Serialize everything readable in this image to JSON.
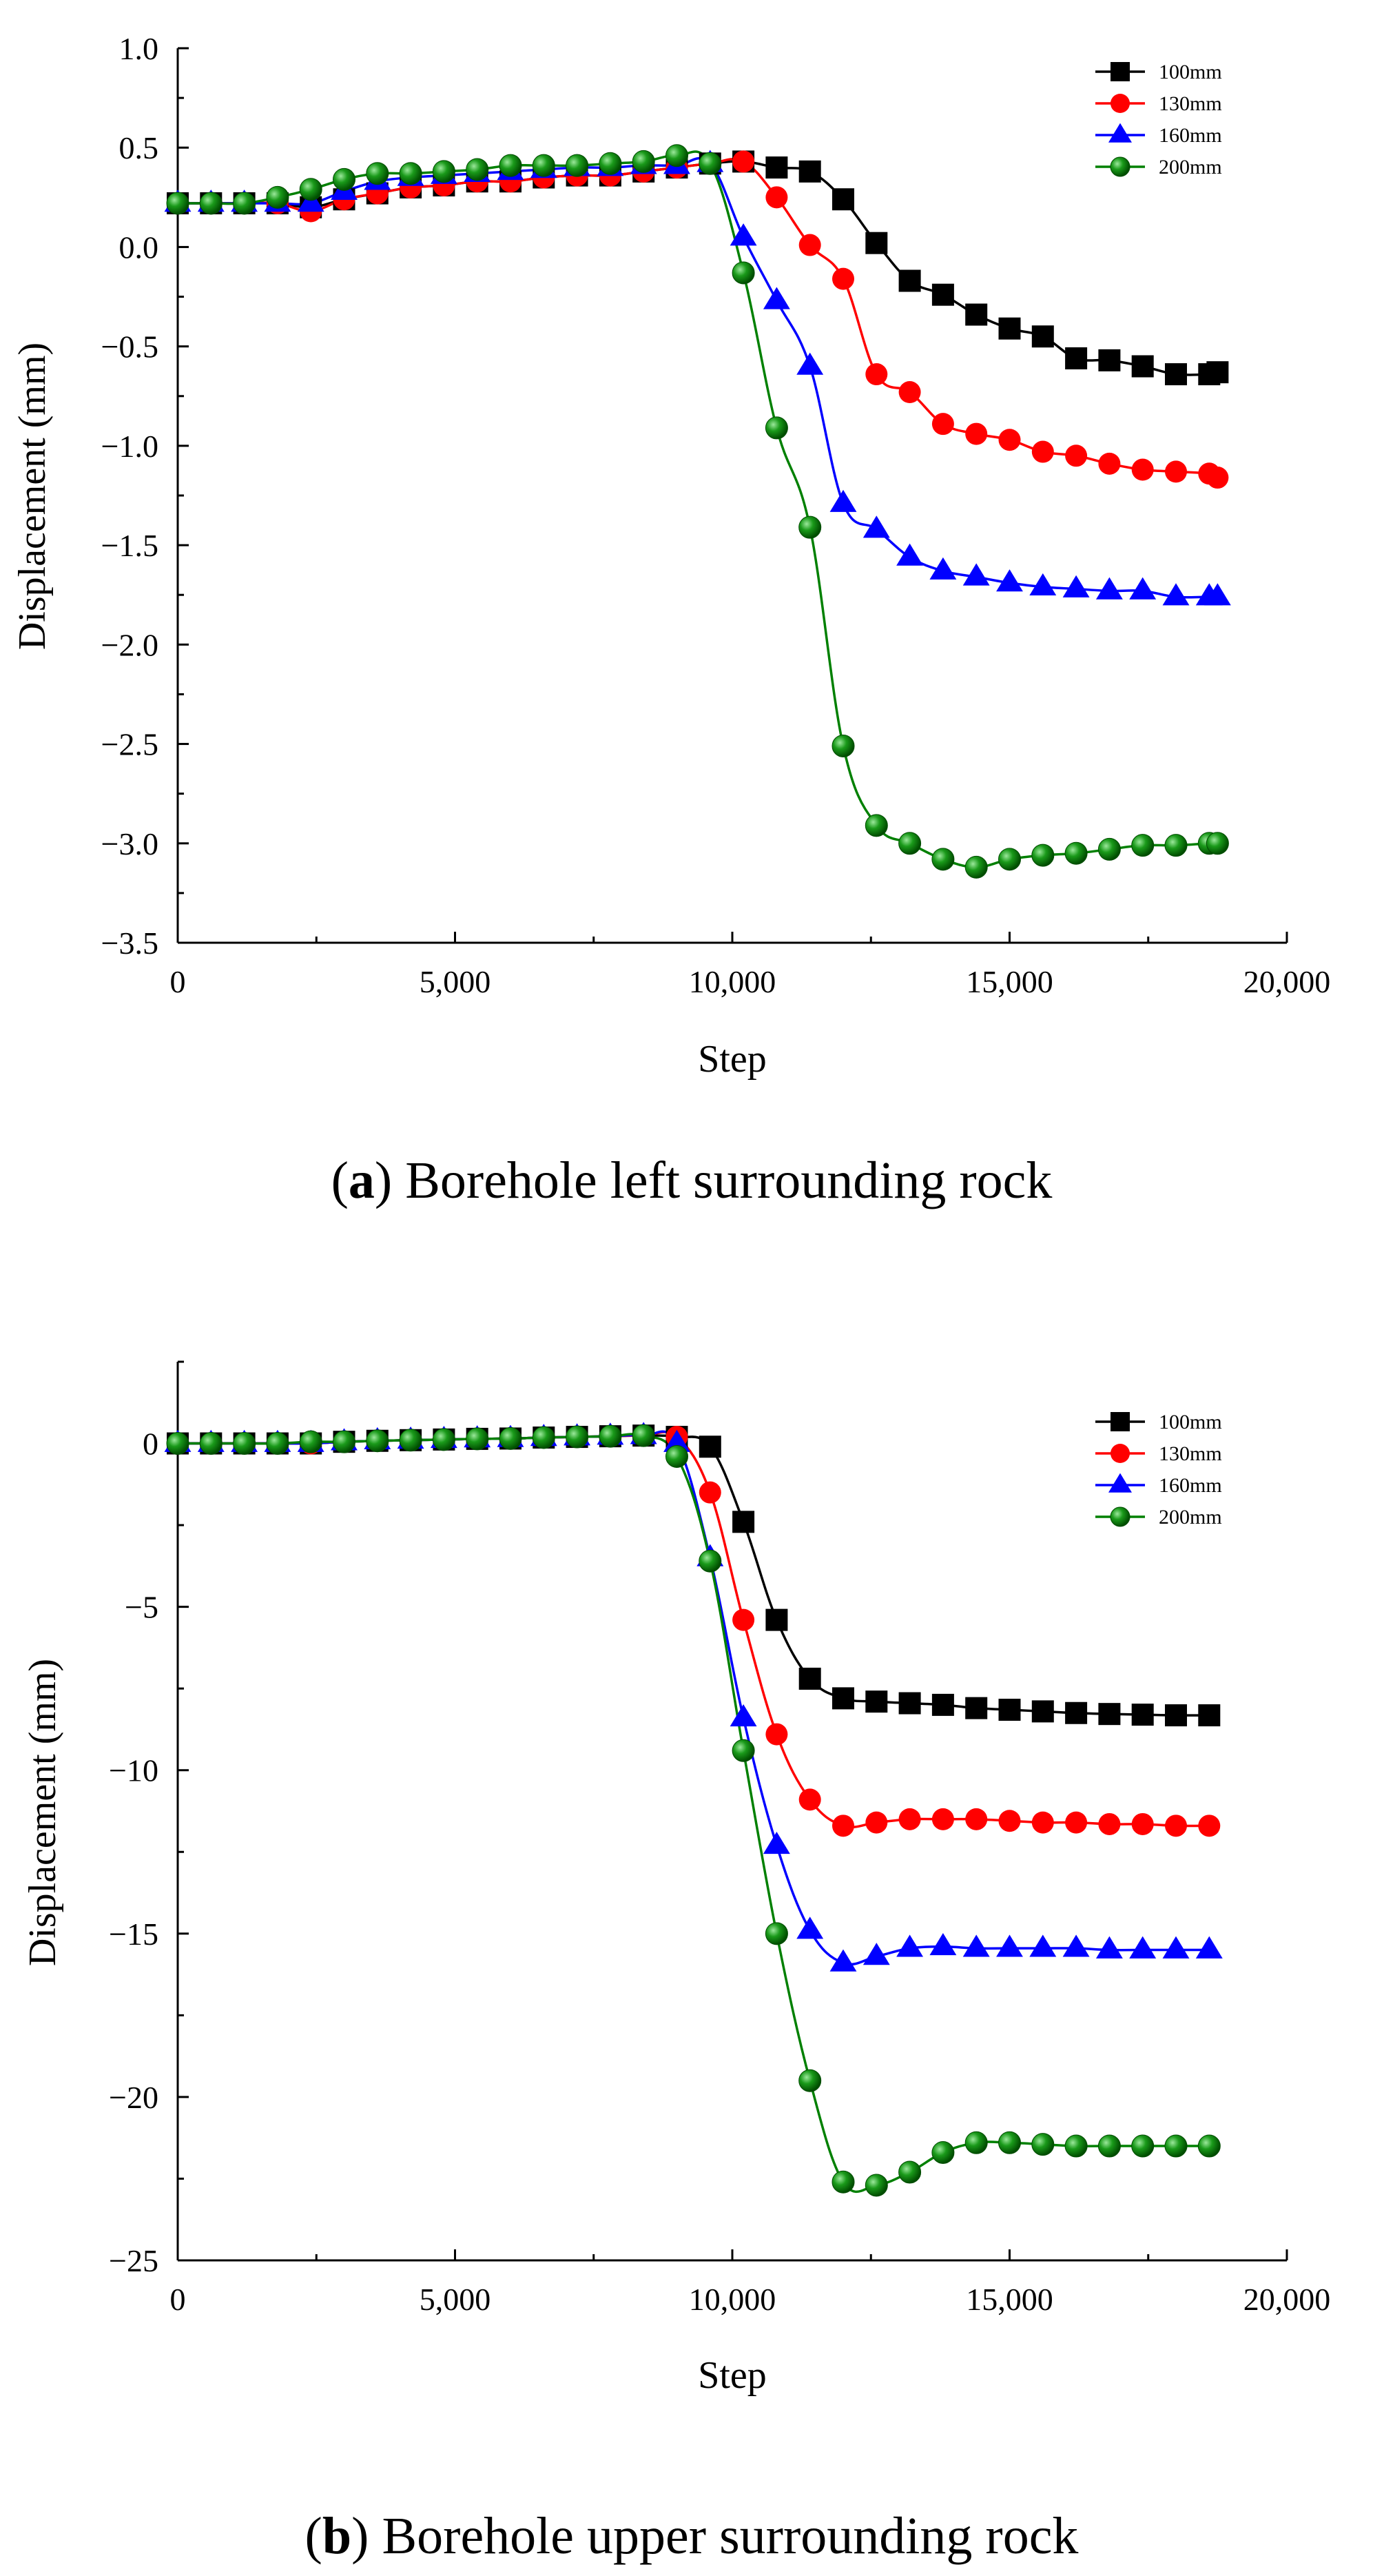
{
  "chart_data": [
    {
      "type": "line",
      "panel_label": "a",
      "caption_text": "Borehole left surrounding rock",
      "xlabel": "Step",
      "ylabel": "Displacement (mm)",
      "xlim": [
        0,
        20000
      ],
      "ylim": [
        -3.5,
        1.0
      ],
      "x_ticks": [
        0,
        5000,
        10000,
        15000,
        20000
      ],
      "x_tick_labels": [
        "0",
        "5,000",
        "10,000",
        "15,000",
        "20,000"
      ],
      "y_ticks": [
        -3.5,
        -3.0,
        -2.5,
        -2.0,
        -1.5,
        -1.0,
        -0.5,
        0.0,
        0.5,
        1.0
      ],
      "y_tick_labels": [
        "−3.5",
        "−3.0",
        "−2.5",
        "−2.0",
        "−1.5",
        "−1.0",
        "−0.5",
        "0.0",
        "0.5",
        "1.0"
      ],
      "legend_position": "top-right",
      "series": [
        {
          "name": "100mm",
          "color": "#000000",
          "marker": "square",
          "x": [
            0,
            600,
            1200,
            1800,
            2400,
            3000,
            3600,
            4200,
            4800,
            5400,
            6000,
            6600,
            7200,
            7800,
            8400,
            9000,
            9600,
            10200,
            10800,
            11400,
            12000,
            12600,
            13200,
            13800,
            14400,
            15000,
            15600,
            16200,
            16800,
            17400,
            18000,
            18600,
            18750
          ],
          "values": [
            0.22,
            0.22,
            0.22,
            0.22,
            0.2,
            0.24,
            0.27,
            0.3,
            0.31,
            0.33,
            0.33,
            0.35,
            0.36,
            0.36,
            0.38,
            0.4,
            0.42,
            0.43,
            0.4,
            0.38,
            0.24,
            0.02,
            -0.17,
            -0.24,
            -0.34,
            -0.41,
            -0.45,
            -0.56,
            -0.57,
            -0.6,
            -0.64,
            -0.64,
            -0.63
          ]
        },
        {
          "name": "130mm",
          "color": "#ff0000",
          "marker": "circle",
          "x": [
            0,
            600,
            1200,
            1800,
            2400,
            3000,
            3600,
            4200,
            4800,
            5400,
            6000,
            6600,
            7200,
            7800,
            8400,
            9000,
            9600,
            10200,
            10800,
            11400,
            12000,
            12600,
            13200,
            13800,
            14400,
            15000,
            15600,
            16200,
            16800,
            17400,
            18000,
            18600,
            18750
          ],
          "values": [
            0.22,
            0.22,
            0.22,
            0.22,
            0.18,
            0.24,
            0.27,
            0.3,
            0.31,
            0.33,
            0.33,
            0.35,
            0.36,
            0.36,
            0.38,
            0.4,
            0.42,
            0.43,
            0.25,
            0.01,
            -0.16,
            -0.64,
            -0.73,
            -0.89,
            -0.94,
            -0.97,
            -1.03,
            -1.05,
            -1.09,
            -1.12,
            -1.13,
            -1.14,
            -1.16
          ]
        },
        {
          "name": "160mm",
          "color": "#0000ff",
          "marker": "triangle",
          "x": [
            0,
            600,
            1200,
            1800,
            2400,
            3000,
            3600,
            4200,
            4800,
            5400,
            6000,
            6600,
            7200,
            7800,
            8400,
            9000,
            9600,
            10200,
            10800,
            11400,
            12000,
            12600,
            13200,
            13800,
            14400,
            15000,
            15600,
            16200,
            16800,
            17400,
            18000,
            18600,
            18750
          ],
          "values": [
            0.22,
            0.22,
            0.22,
            0.22,
            0.22,
            0.28,
            0.33,
            0.35,
            0.36,
            0.37,
            0.38,
            0.39,
            0.4,
            0.4,
            0.41,
            0.41,
            0.42,
            0.05,
            -0.27,
            -0.6,
            -1.29,
            -1.42,
            -1.56,
            -1.63,
            -1.66,
            -1.69,
            -1.71,
            -1.72,
            -1.73,
            -1.73,
            -1.76,
            -1.76,
            -1.76
          ]
        },
        {
          "name": "200mm",
          "color": "#008000",
          "marker": "sphere",
          "x": [
            0,
            600,
            1200,
            1800,
            2400,
            3000,
            3600,
            4200,
            4800,
            5400,
            6000,
            6600,
            7200,
            7800,
            8400,
            9000,
            9600,
            10200,
            10800,
            11400,
            12000,
            12600,
            13200,
            13800,
            14400,
            15000,
            15600,
            16200,
            16800,
            17400,
            18000,
            18600,
            18750
          ],
          "values": [
            0.22,
            0.22,
            0.22,
            0.25,
            0.29,
            0.34,
            0.37,
            0.37,
            0.38,
            0.39,
            0.41,
            0.41,
            0.41,
            0.42,
            0.43,
            0.46,
            0.42,
            -0.13,
            -0.91,
            -1.41,
            -2.51,
            -2.91,
            -3.0,
            -3.08,
            -3.12,
            -3.08,
            -3.06,
            -3.05,
            -3.03,
            -3.01,
            -3.01,
            -3.0,
            -3.0
          ]
        }
      ]
    },
    {
      "type": "line",
      "panel_label": "b",
      "caption_text": "Borehole upper surrounding rock",
      "xlabel": "Step",
      "ylabel": "Displacement (mm)",
      "xlim": [
        0,
        20000
      ],
      "ylim": [
        -25,
        2.5
      ],
      "x_ticks": [
        0,
        5000,
        10000,
        15000,
        20000
      ],
      "x_tick_labels": [
        "0",
        "5,000",
        "10,000",
        "15,000",
        "20,000"
      ],
      "y_ticks": [
        -25,
        -20,
        -15,
        -10,
        -5,
        0
      ],
      "y_tick_labels": [
        "−25",
        "−20",
        "−15",
        "−10",
        "−5",
        "0"
      ],
      "legend_position": "top-right",
      "series": [
        {
          "name": "100mm",
          "color": "#000000",
          "marker": "square",
          "x": [
            0,
            600,
            1200,
            1800,
            2400,
            3000,
            3600,
            4200,
            4800,
            5400,
            6000,
            6600,
            7200,
            7800,
            8400,
            9000,
            9600,
            10200,
            10800,
            11400,
            12000,
            12600,
            13200,
            13800,
            14400,
            15000,
            15600,
            16200,
            16800,
            17400,
            18000,
            18600
          ],
          "values": [
            0.0,
            0.0,
            0.0,
            0.0,
            0.0,
            0.05,
            0.08,
            0.1,
            0.12,
            0.14,
            0.15,
            0.18,
            0.2,
            0.22,
            0.24,
            0.2,
            -0.1,
            -2.4,
            -5.4,
            -7.2,
            -7.8,
            -7.9,
            -7.95,
            -8.0,
            -8.1,
            -8.15,
            -8.2,
            -8.25,
            -8.28,
            -8.3,
            -8.32,
            -8.32
          ]
        },
        {
          "name": "130mm",
          "color": "#ff0000",
          "marker": "circle",
          "x": [
            0,
            600,
            1200,
            1800,
            2400,
            3000,
            3600,
            4200,
            4800,
            5400,
            6000,
            6600,
            7200,
            7800,
            8400,
            9000,
            9600,
            10200,
            10800,
            11400,
            12000,
            12600,
            13200,
            13800,
            14400,
            15000,
            15600,
            16200,
            16800,
            17400,
            18000,
            18600
          ],
          "values": [
            0.0,
            0.0,
            0.0,
            0.0,
            0.0,
            0.05,
            0.08,
            0.1,
            0.12,
            0.14,
            0.15,
            0.18,
            0.2,
            0.22,
            0.24,
            0.2,
            -1.5,
            -5.4,
            -8.9,
            -10.9,
            -11.7,
            -11.6,
            -11.5,
            -11.5,
            -11.5,
            -11.55,
            -11.6,
            -11.6,
            -11.65,
            -11.65,
            -11.7,
            -11.7
          ]
        },
        {
          "name": "160mm",
          "color": "#0000ff",
          "marker": "triangle",
          "x": [
            0,
            600,
            1200,
            1800,
            2400,
            3000,
            3600,
            4200,
            4800,
            5400,
            6000,
            6600,
            7200,
            7800,
            8400,
            9000,
            9600,
            10200,
            10800,
            11400,
            12000,
            12600,
            13200,
            13800,
            14400,
            15000,
            15600,
            16200,
            16800,
            17400,
            18000,
            18600
          ],
          "values": [
            0.0,
            0.0,
            0.0,
            0.0,
            0.0,
            0.05,
            0.08,
            0.1,
            0.12,
            0.14,
            0.15,
            0.18,
            0.2,
            0.22,
            0.24,
            0.0,
            -3.5,
            -8.4,
            -12.3,
            -14.9,
            -15.9,
            -15.7,
            -15.45,
            -15.4,
            -15.45,
            -15.45,
            -15.45,
            -15.45,
            -15.5,
            -15.5,
            -15.5,
            -15.5
          ]
        },
        {
          "name": "200mm",
          "color": "#008000",
          "marker": "sphere",
          "x": [
            0,
            600,
            1200,
            1800,
            2400,
            3000,
            3600,
            4200,
            4800,
            5400,
            6000,
            6600,
            7200,
            7800,
            8400,
            9000,
            9600,
            10200,
            10800,
            11400,
            12000,
            12600,
            13200,
            13800,
            14400,
            15000,
            15600,
            16200,
            16800,
            17400,
            18000,
            18600
          ],
          "values": [
            0.0,
            0.0,
            0.0,
            0.0,
            0.05,
            0.05,
            0.08,
            0.1,
            0.12,
            0.14,
            0.15,
            0.18,
            0.2,
            0.22,
            0.24,
            -0.4,
            -3.6,
            -9.4,
            -15.0,
            -19.5,
            -22.6,
            -22.7,
            -22.3,
            -21.7,
            -21.4,
            -21.4,
            -21.45,
            -21.5,
            -21.5,
            -21.5,
            -21.5,
            -21.5
          ]
        }
      ]
    }
  ]
}
